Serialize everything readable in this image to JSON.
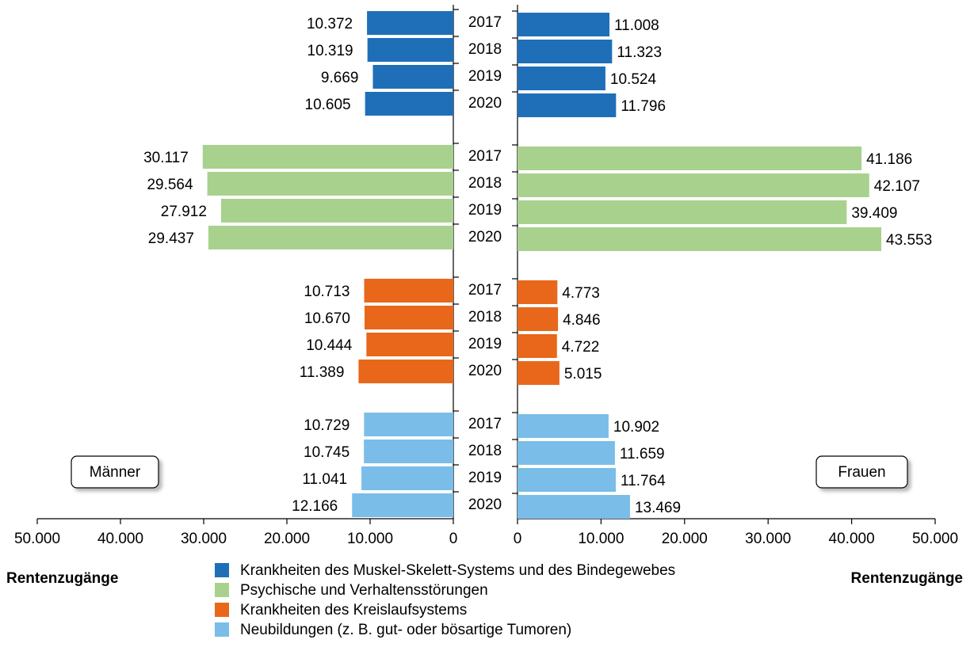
{
  "chart_data": {
    "type": "bar",
    "orientation": "horizontal",
    "categories": [
      "2017",
      "2018",
      "2019",
      "2020"
    ],
    "panels": {
      "men": {
        "label": "Männer",
        "xlabel": "Rentenzugänge",
        "reversed": true,
        "xlim": [
          0,
          50000
        ],
        "xticks": [
          0,
          {
            "value": 10000,
            "label": "10.000"
          },
          {
            "value": 20000,
            "label": "20.000"
          },
          {
            "value": 30000,
            "label": "30.000"
          },
          {
            "value": 40000,
            "label": "40.000"
          },
          {
            "value": 50000,
            "label": "50.000"
          }
        ]
      },
      "women": {
        "label": "Frauen",
        "xlabel": "Rentenzugänge",
        "reversed": false,
        "xlim": [
          0,
          50000
        ],
        "xticks": [
          0,
          {
            "value": 10000,
            "label": "10.000"
          },
          {
            "value": 20000,
            "label": "20.000"
          },
          {
            "value": 30000,
            "label": "30.000"
          },
          {
            "value": 40000,
            "label": "40.000"
          },
          {
            "value": 50000,
            "label": "50.000"
          }
        ]
      }
    },
    "series": [
      {
        "name": "Krankheiten des Muskel-Skelett-Systems und des Bindegewebes",
        "color": "#1f6fb8",
        "men": {
          "values": [
            10372,
            10319,
            9669,
            10605
          ],
          "value_labels": [
            "10.372",
            "10.319",
            "9.669",
            "10.605"
          ]
        },
        "women": {
          "values": [
            11008,
            11323,
            10524,
            11796
          ],
          "value_labels": [
            "11.008",
            "11.323",
            "10.524",
            "11.796"
          ]
        }
      },
      {
        "name": "Psychische und Verhaltensstörungen",
        "color": "#a9d18e",
        "men": {
          "values": [
            30117,
            29564,
            27912,
            29437
          ],
          "value_labels": [
            "30.117",
            "29.564",
            "27.912",
            "29.437"
          ]
        },
        "women": {
          "values": [
            41186,
            42107,
            39409,
            43553
          ],
          "value_labels": [
            "41.186",
            "42.107",
            "39.409",
            "43.553"
          ]
        }
      },
      {
        "name": "Krankheiten des Kreislaufsystems",
        "color": "#e8671a",
        "men": {
          "values": [
            10713,
            10670,
            10444,
            11389
          ],
          "value_labels": [
            "10.713",
            "10.670",
            "10.444",
            "11.389"
          ]
        },
        "women": {
          "values": [
            4773,
            4846,
            4722,
            5015
          ],
          "value_labels": [
            "4.773",
            "4.846",
            "4.722",
            "5.015"
          ]
        }
      },
      {
        "name": "Neubildungen (z. B. gut- oder bösartige Tumoren)",
        "color": "#79bde8",
        "men": {
          "values": [
            10729,
            10745,
            11041,
            12166
          ],
          "value_labels": [
            "10.729",
            "10.745",
            "11.041",
            "12.166"
          ]
        },
        "women": {
          "values": [
            10902,
            11659,
            11764,
            13469
          ],
          "value_labels": [
            "10.902",
            "11.659",
            "11.764",
            "13.469"
          ]
        }
      }
    ]
  }
}
